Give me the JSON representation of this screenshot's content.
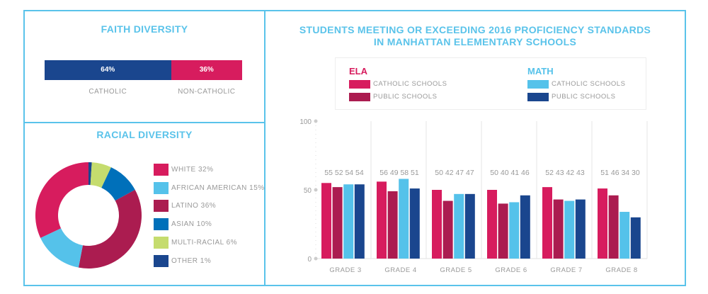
{
  "faith": {
    "title": "FAITH DIVERSITY",
    "segments": [
      {
        "label": "CATHOLIC",
        "value": 64,
        "display": "64%",
        "color": "#1a468e"
      },
      {
        "label": "NON-CATHOLIC",
        "value": 36,
        "display": "36%",
        "color": "#d71c5e"
      }
    ]
  },
  "racial": {
    "title": "RACIAL DIVERSITY",
    "legend": [
      {
        "label": "WHITE 32%",
        "value": 32,
        "color": "#d71c5e"
      },
      {
        "label": "AFRICAN AMERICAN 15%",
        "value": 15,
        "color": "#55c2ea"
      },
      {
        "label": "LATINO 36%",
        "value": 36,
        "color": "#ab1c50"
      },
      {
        "label": "ASIAN 10%",
        "value": 10,
        "color": "#0070ba"
      },
      {
        "label": "MULTI-RACIAL 6%",
        "value": 6,
        "color": "#c5dc6e"
      },
      {
        "label": "OTHER 1%",
        "value": 1,
        "color": "#1a468e"
      }
    ]
  },
  "chart_data": [
    {
      "type": "bar",
      "title": "Faith Diversity",
      "categories": [
        "CATHOLIC",
        "NON-CATHOLIC"
      ],
      "values": [
        64,
        36
      ],
      "stacked": true
    },
    {
      "type": "pie",
      "title": "Racial Diversity",
      "donut": true,
      "categories": [
        "WHITE",
        "AFRICAN AMERICAN",
        "LATINO",
        "ASIAN",
        "MULTI-RACIAL",
        "OTHER"
      ],
      "values": [
        32,
        15,
        36,
        10,
        6,
        1
      ]
    },
    {
      "type": "bar",
      "title_lines": [
        "STUDENTS MEETING OR EXCEEDING 2016 PROFICIENCY STANDARDS",
        "IN MANHATTAN ELEMENTARY SCHOOLS"
      ],
      "categories": [
        "GRADE 3",
        "GRADE 4",
        "GRADE 5",
        "GRADE 6",
        "GRADE 7",
        "GRADE 8"
      ],
      "legend_groups": [
        {
          "title": "ELA",
          "color": "#d71c5e",
          "items": [
            0,
            1
          ]
        },
        {
          "title": "MATH",
          "color": "#55c2ea",
          "items": [
            2,
            3
          ]
        }
      ],
      "series": [
        {
          "name": "CATHOLIC SCHOOLS",
          "group": "ELA",
          "color": "#d71c5e",
          "values": [
            55,
            56,
            50,
            50,
            52,
            51
          ]
        },
        {
          "name": "PUBLIC SCHOOLS",
          "group": "ELA",
          "color": "#ab1c50",
          "values": [
            52,
            49,
            42,
            40,
            43,
            46
          ]
        },
        {
          "name": "CATHOLIC SCHOOLS",
          "group": "MATH",
          "color": "#55c2ea",
          "values": [
            54,
            58,
            47,
            41,
            42,
            34
          ]
        },
        {
          "name": "PUBLIC SCHOOLS",
          "group": "MATH",
          "color": "#1a468e",
          "values": [
            54,
            51,
            47,
            46,
            43,
            30
          ]
        }
      ],
      "yticks": [
        0,
        50,
        100
      ],
      "ylim": [
        0,
        100
      ],
      "grid": false
    }
  ]
}
